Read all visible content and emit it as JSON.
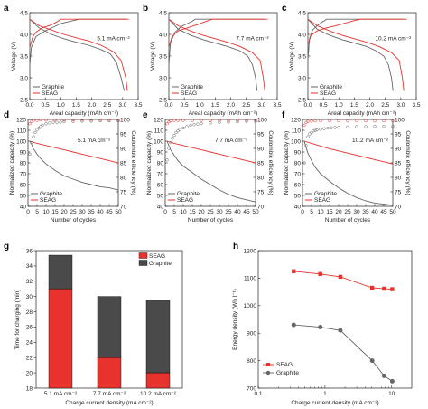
{
  "colors": {
    "graphite": "#666666",
    "seag": "#e8322d",
    "graphite_bar": "#4a4a4a",
    "seag_bar": "#e8322d",
    "axis": "#222222"
  },
  "chart_data": [
    {
      "panel": "a",
      "type": "line",
      "annotation": "5.1 mA cm⁻²",
      "xlabel": "Areal capacity (mAh cm⁻²)",
      "ylabel": "Voltage (V)",
      "xlim": [
        0,
        3.5
      ],
      "ylim": [
        2.5,
        4.5
      ],
      "xticks": [
        "0.0",
        "0.5",
        "1.0",
        "1.5",
        "2.0",
        "2.5",
        "3.0",
        "3.5"
      ],
      "yticks": [
        "2.5",
        "3.0",
        "3.5",
        "4.0",
        "4.5"
      ],
      "legend": [
        "Graphite",
        "SEAG"
      ],
      "series": [
        {
          "name": "Graphite",
          "segment": "charge",
          "x": [
            0,
            0.05,
            0.2,
            0.5,
            0.8,
            1.0,
            1.3,
            1.6,
            3.1
          ],
          "y": [
            3.3,
            3.7,
            3.95,
            4.08,
            4.18,
            4.25,
            4.3,
            4.35,
            4.35
          ]
        },
        {
          "name": "Graphite",
          "segment": "discharge",
          "x": [
            0,
            0.3,
            0.7,
            1.1,
            1.5,
            1.9,
            2.3,
            2.6,
            2.8,
            2.95,
            3.05
          ],
          "y": [
            4.35,
            4.15,
            4.0,
            3.9,
            3.82,
            3.75,
            3.65,
            3.55,
            3.35,
            3.0,
            2.7
          ]
        },
        {
          "name": "SEAG",
          "segment": "charge",
          "x": [
            0,
            0.1,
            0.2,
            0.4,
            0.7,
            0.9,
            1.0,
            3.2
          ],
          "y": [
            3.7,
            3.95,
            4.05,
            4.15,
            4.22,
            4.3,
            4.35,
            4.35
          ]
        },
        {
          "name": "SEAG",
          "segment": "discharge",
          "x": [
            0,
            0.3,
            0.7,
            1.1,
            1.5,
            1.9,
            2.3,
            2.7,
            2.95,
            3.1,
            3.15
          ],
          "y": [
            4.35,
            4.2,
            4.1,
            4.0,
            3.92,
            3.85,
            3.75,
            3.6,
            3.4,
            3.0,
            2.7
          ]
        }
      ]
    },
    {
      "panel": "b",
      "type": "line",
      "annotation": "7.7 mA cm⁻²",
      "xlabel": "Areal capacity (mAh cm⁻²)",
      "ylabel": "Voltage (V)",
      "xlim": [
        0,
        3.5
      ],
      "ylim": [
        2.5,
        4.5
      ],
      "xticks": [
        "0.0",
        "0.5",
        "1.0",
        "1.5",
        "2.0",
        "2.5",
        "3.0",
        "3.5"
      ],
      "yticks": [
        "2.5",
        "3.0",
        "3.5",
        "4.0",
        "4.5"
      ],
      "legend": [
        "Graphite",
        "SEAG"
      ],
      "series": [
        {
          "name": "Graphite",
          "segment": "charge",
          "x": [
            0,
            0.05,
            0.2,
            0.4,
            0.6,
            0.75,
            0.85,
            3.1
          ],
          "y": [
            3.3,
            3.8,
            4.05,
            4.18,
            4.25,
            4.3,
            4.35,
            4.35
          ]
        },
        {
          "name": "Graphite",
          "segment": "discharge",
          "x": [
            0,
            0.3,
            0.7,
            1.1,
            1.5,
            1.9,
            2.3,
            2.55,
            2.7,
            2.8,
            2.85
          ],
          "y": [
            4.35,
            4.12,
            3.98,
            3.88,
            3.8,
            3.72,
            3.62,
            3.5,
            3.3,
            3.0,
            2.7
          ]
        },
        {
          "name": "SEAG",
          "segment": "charge",
          "x": [
            0,
            0.1,
            0.3,
            0.6,
            0.9,
            1.2,
            1.4,
            3.2
          ],
          "y": [
            3.7,
            3.95,
            4.08,
            4.15,
            4.22,
            4.3,
            4.35,
            4.35
          ]
        },
        {
          "name": "SEAG",
          "segment": "discharge",
          "x": [
            0,
            0.3,
            0.7,
            1.1,
            1.5,
            1.9,
            2.3,
            2.7,
            2.95,
            3.05,
            3.1
          ],
          "y": [
            4.35,
            4.2,
            4.08,
            3.98,
            3.9,
            3.82,
            3.72,
            3.58,
            3.4,
            3.0,
            2.7
          ]
        }
      ]
    },
    {
      "panel": "c",
      "type": "line",
      "annotation": "10.2 mA cm⁻²",
      "xlabel": "Areal capacity (mAh cm⁻²)",
      "ylabel": "Voltage (V)",
      "xlim": [
        0,
        3.5
      ],
      "ylim": [
        2.5,
        4.5
      ],
      "xticks": [
        "0.0",
        "0.5",
        "1.0",
        "1.5",
        "2.0",
        "2.5",
        "3.0",
        "3.5"
      ],
      "yticks": [
        "2.5",
        "3.0",
        "3.5",
        "4.0",
        "4.5"
      ],
      "legend": [
        "Graphite",
        "SEAG"
      ],
      "series": [
        {
          "name": "Graphite",
          "segment": "charge",
          "x": [
            0,
            0.05,
            0.15,
            0.3,
            0.45,
            0.55,
            0.6,
            3.1
          ],
          "y": [
            3.4,
            3.9,
            4.1,
            4.2,
            4.28,
            4.32,
            4.35,
            4.35
          ]
        },
        {
          "name": "Graphite",
          "segment": "discharge",
          "x": [
            0,
            0.3,
            0.7,
            1.1,
            1.5,
            1.9,
            2.2,
            2.45,
            2.6,
            2.7,
            2.75
          ],
          "y": [
            4.35,
            4.12,
            3.98,
            3.88,
            3.8,
            3.72,
            3.62,
            3.5,
            3.3,
            3.0,
            2.7
          ]
        },
        {
          "name": "SEAG",
          "segment": "charge",
          "x": [
            0,
            0.1,
            0.3,
            0.6,
            0.9,
            1.2,
            1.5,
            1.7,
            3.2
          ],
          "y": [
            3.75,
            3.98,
            4.08,
            4.15,
            4.2,
            4.26,
            4.32,
            4.35,
            4.35
          ]
        },
        {
          "name": "SEAG",
          "segment": "discharge",
          "x": [
            0,
            0.3,
            0.7,
            1.1,
            1.5,
            1.9,
            2.3,
            2.7,
            2.95,
            3.05,
            3.1
          ],
          "y": [
            4.35,
            4.2,
            4.08,
            3.98,
            3.9,
            3.82,
            3.72,
            3.58,
            3.4,
            3.0,
            2.7
          ]
        }
      ]
    },
    {
      "panel": "d",
      "type": "line",
      "annotation": "5.1 mA cm⁻²",
      "xlabel": "Number of cycles",
      "ylabel": "Normalized capacity (%)",
      "ylabel_right": "Coulombic efficiency (%)",
      "xlim": [
        0,
        50
      ],
      "ylim": [
        40,
        120
      ],
      "ylim_right": [
        70,
        100
      ],
      "xticks": [
        "0",
        "5",
        "10",
        "15",
        "20",
        "25",
        "30",
        "35",
        "40",
        "45",
        "50"
      ],
      "yticks": [
        "40",
        "50",
        "60",
        "70",
        "80",
        "90",
        "100",
        "110",
        "120"
      ],
      "yticks_right": [
        "70",
        "75",
        "80",
        "85",
        "90",
        "95",
        "100"
      ],
      "legend": [
        "Graphite",
        "SEAG"
      ],
      "series": [
        {
          "name": "Graphite",
          "x": [
            1,
            2,
            3,
            5,
            7,
            10,
            15,
            20,
            25,
            30,
            35,
            40,
            45,
            50
          ],
          "y": [
            100,
            97,
            93,
            88,
            84,
            79,
            73,
            68,
            65,
            62,
            60,
            58,
            57,
            55
          ]
        },
        {
          "name": "SEAG",
          "x": [
            1,
            5,
            10,
            15,
            20,
            25,
            30,
            35,
            40,
            45,
            50
          ],
          "y": [
            100,
            98,
            96,
            94,
            92,
            90,
            88,
            86,
            84,
            82,
            80
          ]
        }
      ],
      "ce_series": [
        {
          "name": "Graphite",
          "x": [
            1,
            2,
            3,
            4,
            5,
            6,
            7,
            8,
            10,
            12,
            14,
            16,
            18,
            20,
            25,
            30,
            35,
            40,
            45,
            50
          ],
          "y": [
            88,
            92,
            94,
            95.5,
            96.5,
            97,
            97.5,
            98,
            98.5,
            98.8,
            99,
            99,
            99.1,
            99.2,
            99.3,
            99.4,
            99.4,
            99.5,
            99.5,
            99.5
          ]
        },
        {
          "name": "SEAG",
          "x": [
            1,
            2,
            3,
            5,
            7,
            10,
            15,
            20,
            25,
            30,
            35,
            40,
            45,
            50
          ],
          "y": [
            98.5,
            99.3,
            99.6,
            99.7,
            99.8,
            99.8,
            99.8,
            99.8,
            99.8,
            99.8,
            99.8,
            99.8,
            99.8,
            99.8
          ]
        }
      ]
    },
    {
      "panel": "e",
      "type": "line",
      "annotation": "7.7 mA cm⁻²",
      "xlabel": "Number of cycles",
      "ylabel": "Normalized capacity (%)",
      "ylabel_right": "Coulombic efficiency (%)",
      "xlim": [
        0,
        50
      ],
      "ylim": [
        40,
        120
      ],
      "ylim_right": [
        70,
        100
      ],
      "xticks": [
        "0",
        "5",
        "10",
        "15",
        "20",
        "25",
        "30",
        "35",
        "40",
        "45",
        "50"
      ],
      "yticks": [
        "40",
        "50",
        "60",
        "70",
        "80",
        "90",
        "100",
        "110",
        "120"
      ],
      "yticks_right": [
        "70",
        "75",
        "80",
        "85",
        "90",
        "95",
        "100"
      ],
      "legend": [
        "Graphite",
        "SEAG"
      ],
      "series": [
        {
          "name": "Graphite",
          "x": [
            1,
            2,
            3,
            5,
            7,
            10,
            15,
            20,
            25,
            30,
            35,
            40,
            45,
            50
          ],
          "y": [
            100,
            96,
            92,
            87,
            82,
            77,
            71,
            65,
            60,
            55,
            51,
            48,
            46,
            44
          ]
        },
        {
          "name": "SEAG",
          "x": [
            1,
            5,
            10,
            15,
            20,
            25,
            30,
            35,
            40,
            45,
            50
          ],
          "y": [
            100,
            98,
            96,
            94,
            92,
            90,
            88,
            86,
            84,
            82,
            80
          ]
        }
      ],
      "ce_series": [
        {
          "name": "Graphite",
          "x": [
            1,
            2,
            3,
            4,
            5,
            6,
            7,
            8,
            10,
            12,
            14,
            16,
            18,
            20,
            25,
            30,
            35,
            40,
            45,
            50
          ],
          "y": [
            86,
            90,
            92,
            93.5,
            94.5,
            95.5,
            96,
            96.5,
            97,
            97.5,
            98,
            98.2,
            98.4,
            98.6,
            98.8,
            99,
            99.1,
            99.2,
            99.3,
            99.3
          ]
        },
        {
          "name": "SEAG",
          "x": [
            1,
            2,
            3,
            5,
            7,
            10,
            15,
            20,
            25,
            30,
            35,
            40,
            45,
            50
          ],
          "y": [
            98.5,
            99.2,
            99.5,
            99.6,
            99.7,
            99.7,
            99.7,
            99.7,
            99.7,
            99.7,
            99.7,
            99.7,
            99.7,
            99.7
          ]
        }
      ]
    },
    {
      "panel": "f",
      "type": "line",
      "annotation": "10.2 mA cm⁻²",
      "xlabel": "Number of cycles",
      "ylabel": "Normalized capacity (%)",
      "ylabel_right": "Coulombic efficiency (%)",
      "xlim": [
        0,
        50
      ],
      "ylim": [
        40,
        120
      ],
      "ylim_right": [
        70,
        100
      ],
      "xticks": [
        "0",
        "5",
        "10",
        "15",
        "20",
        "25",
        "30",
        "35",
        "40",
        "45",
        "50"
      ],
      "yticks": [
        "40",
        "50",
        "60",
        "70",
        "80",
        "90",
        "100",
        "110",
        "120"
      ],
      "yticks_right": [
        "70",
        "75",
        "80",
        "85",
        "90",
        "95",
        "100"
      ],
      "legend": [
        "Graphite",
        "SEAG"
      ],
      "series": [
        {
          "name": "Graphite",
          "x": [
            1,
            2,
            3,
            5,
            7,
            10,
            15,
            20,
            25,
            30,
            35,
            40,
            45,
            50
          ],
          "y": [
            100,
            94,
            89,
            82,
            76,
            70,
            63,
            57,
            52,
            48,
            45,
            43,
            42,
            41
          ]
        },
        {
          "name": "SEAG",
          "x": [
            1,
            5,
            10,
            15,
            20,
            25,
            30,
            35,
            40,
            45,
            50
          ],
          "y": [
            100,
            98,
            95.5,
            93,
            91,
            89,
            87,
            85,
            83,
            81,
            79
          ]
        }
      ],
      "ce_series": [
        {
          "name": "Graphite",
          "x": [
            1,
            2,
            3,
            4,
            5,
            6,
            7,
            8,
            10,
            12,
            14,
            16,
            18,
            20,
            25,
            30,
            35,
            40,
            45,
            50
          ],
          "y": [
            85,
            91,
            94,
            95,
            95.5,
            96,
            96.2,
            96.4,
            96.6,
            96.8,
            97,
            97.1,
            97.2,
            97.3,
            97.4,
            97.5,
            97.5,
            97.6,
            97.6,
            97.6
          ]
        },
        {
          "name": "SEAG",
          "x": [
            1,
            2,
            3,
            5,
            7,
            10,
            15,
            20,
            25,
            30,
            35,
            40,
            45,
            50
          ],
          "y": [
            98,
            99,
            99.3,
            99.4,
            99.5,
            99.5,
            99.5,
            99.5,
            99.5,
            99.5,
            99.5,
            99.5,
            99.5,
            99.5
          ]
        }
      ]
    },
    {
      "panel": "g",
      "type": "bar",
      "xlabel": "Charge current density (mA cm⁻²)",
      "ylabel": "Time for charging (min)",
      "ylim": [
        18,
        36
      ],
      "yticks": [
        "18",
        "20",
        "22",
        "24",
        "26",
        "28",
        "30",
        "32",
        "34",
        "36"
      ],
      "categories": [
        "5.1 mA cm⁻²",
        "7.7 mA cm⁻²",
        "10.2 mA cm⁻²"
      ],
      "legend": [
        "SEAG",
        "Graphite"
      ],
      "series": [
        {
          "name": "SEAG",
          "values": [
            31,
            22,
            20
          ]
        },
        {
          "name": "Graphite",
          "values": [
            35.4,
            30,
            29.5
          ]
        }
      ]
    },
    {
      "panel": "h",
      "type": "line",
      "xlabel": "Charge current density (mA cm⁻²)",
      "ylabel": "Energy density (Wh l⁻¹)",
      "xscale": "log",
      "xlim": [
        0.1,
        20
      ],
      "ylim": [
        700,
        1200
      ],
      "xticks": [
        "0.1",
        "1",
        "10"
      ],
      "yticks": [
        "700",
        "800",
        "900",
        "1000",
        "1100",
        "1200"
      ],
      "legend": [
        "SEAG",
        "Graphite"
      ],
      "series": [
        {
          "name": "SEAG",
          "x": [
            0.34,
            0.85,
            1.7,
            5.1,
            7.7,
            10.2
          ],
          "y": [
            1125,
            1115,
            1105,
            1065,
            1062,
            1060
          ]
        },
        {
          "name": "Graphite",
          "x": [
            0.34,
            0.85,
            1.7,
            5.1,
            7.7,
            10.2
          ],
          "y": [
            930,
            922,
            910,
            800,
            745,
            725
          ]
        }
      ]
    }
  ]
}
